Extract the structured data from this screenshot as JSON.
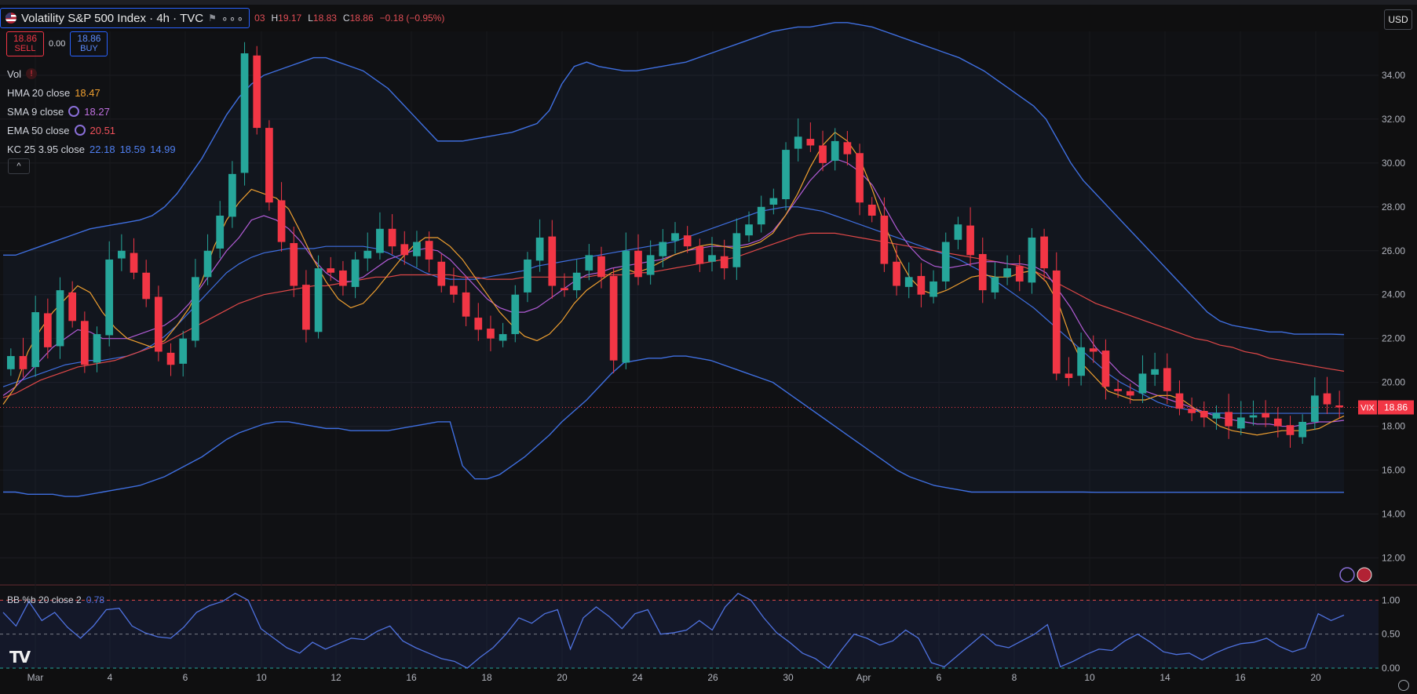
{
  "header": {
    "symbol_title": "Volatility S&P 500 Index · 4h · TVC",
    "more": "∘∘∘",
    "o_value": "03",
    "h_label": "H",
    "h_value": "19.17",
    "l_label": "L",
    "l_value": "18.83",
    "c_label": "C",
    "c_value": "18.86",
    "change": "−0.18 (−0.95%)"
  },
  "trade": {
    "sell_price": "18.86",
    "sell_label": "SELL",
    "spread": "0.00",
    "buy_price": "18.86",
    "buy_label": "BUY"
  },
  "legend": {
    "vol": "Vol",
    "hma_name": "HMA 20 close",
    "hma_value": "18.47",
    "sma_name": "SMA 9 close",
    "sma_value": "18.27",
    "ema_name": "EMA 50 close",
    "ema_value": "20.51",
    "kc_name": "KC 25 3.95 close",
    "kc_upper": "22.18",
    "kc_mid": "18.59",
    "kc_lower": "14.99",
    "collapse": "^"
  },
  "currency": "USD",
  "price_axis": [
    "34.00",
    "32.00",
    "30.00",
    "28.00",
    "26.00",
    "24.00",
    "22.00",
    "20.00",
    "18.00",
    "16.00",
    "14.00",
    "12.00"
  ],
  "last_price_tag": {
    "symbol": "VIX",
    "value": "18.86"
  },
  "osc_axis": [
    "1.00",
    "0.50",
    "0.00"
  ],
  "osc_legend": {
    "name": "BB %b 20 close 2",
    "value": "0.78"
  },
  "time_axis": [
    "Mar",
    "4",
    "6",
    "10",
    "12",
    "16",
    "18",
    "20",
    "24",
    "26",
    "30",
    "Apr",
    "6",
    "8",
    "10",
    "14",
    "16",
    "20"
  ],
  "colors": {
    "up": "#26a69a",
    "down": "#f23645",
    "hma": "#f0a030",
    "sma": "#b25cd6",
    "ema": "#e04848",
    "kc": "#3f6fe0",
    "osc": "#4f72e0"
  },
  "chart_data": [
    {
      "type": "line",
      "title": "Volatility S&P 500 Index · 4h · TVC",
      "ylim": [
        10.8,
        36.0
      ],
      "y_ticks": [
        34,
        32,
        30,
        28,
        26,
        24,
        22,
        20,
        18,
        16,
        14,
        12
      ],
      "x_ticks": [
        "Mar",
        "4",
        "6",
        "10",
        "12",
        "16",
        "18",
        "20",
        "24",
        "26",
        "30",
        "Apr",
        "6",
        "8",
        "10",
        "14",
        "16",
        "20"
      ],
      "last_value": 18.86,
      "candles_close": [
        21.2,
        20.6,
        23.2,
        21.6,
        24.2,
        22.8,
        20.8,
        22.2,
        25.6,
        26.0,
        25.0,
        23.8,
        21.4,
        20.8,
        22.0,
        24.8,
        26.0,
        27.6,
        29.5,
        35.0,
        31.6,
        28.2,
        26.4,
        24.4,
        22.4,
        25.2,
        25.0,
        24.4,
        25.6,
        26.0,
        27.0,
        26.2,
        25.8,
        26.4,
        25.6,
        24.4,
        24.0,
        23.0,
        22.4,
        22.0,
        22.2,
        24.0,
        25.6,
        26.6,
        24.4,
        24.2,
        25.0,
        25.8,
        24.8,
        21.0,
        26.0,
        24.8,
        25.8,
        26.4,
        26.8,
        26.2,
        25.4,
        25.8,
        25.2,
        26.8,
        27.2,
        28.0,
        28.4,
        30.6,
        31.2,
        30.8,
        30.0,
        31.0,
        30.4,
        28.2,
        27.6,
        25.4,
        24.4,
        24.8,
        24.0,
        24.6,
        26.4,
        27.2,
        25.8,
        24.2,
        24.8,
        25.2,
        24.6,
        26.6,
        25.2,
        20.4,
        20.2,
        21.6,
        21.4,
        19.8,
        19.6,
        19.4,
        20.4,
        20.6,
        19.6,
        18.8,
        18.6,
        18.4,
        18.6,
        18.0,
        18.4,
        18.5,
        18.4,
        18.0,
        17.6,
        18.2,
        19.4,
        19.0,
        18.86
      ],
      "hma": [
        19.0,
        19.8,
        21.4,
        22.4,
        23.2,
        23.8,
        24.4,
        24.1,
        23.2,
        22.5,
        22.0,
        21.8,
        21.6,
        21.9,
        22.6,
        23.4,
        24.6,
        26.2,
        27.4,
        28.2,
        28.8,
        28.6,
        28.4,
        27.9,
        26.8,
        25.6,
        24.6,
        23.8,
        23.4,
        23.6,
        24.2,
        24.9,
        25.6,
        26.2,
        26.6,
        26.6,
        26.2,
        25.6,
        24.8,
        24.0,
        23.2,
        22.6,
        22.1,
        21.9,
        22.2,
        22.8,
        23.6,
        24.2,
        24.6,
        25.0,
        25.2,
        25.0,
        25.2,
        25.5,
        25.8,
        26.0,
        26.2,
        26.3,
        26.2,
        26.1,
        26.2,
        26.4,
        26.8,
        27.6,
        28.6,
        29.8,
        30.8,
        31.4,
        31.0,
        30.2,
        28.8,
        27.2,
        25.8,
        24.8,
        24.2,
        24.0,
        24.2,
        24.5,
        24.8,
        24.9,
        24.8,
        24.8,
        25.0,
        25.1,
        24.6,
        23.6,
        22.0,
        20.8,
        20.2,
        19.6,
        19.4,
        19.2,
        19.2,
        19.4,
        19.4,
        19.2,
        18.8,
        18.4,
        18.0,
        17.8,
        17.7,
        17.6,
        17.7,
        17.8,
        17.8,
        17.8,
        17.9,
        18.2,
        18.47
      ],
      "sma": [
        19.4,
        19.8,
        20.4,
        21.0,
        21.6,
        22.0,
        22.4,
        22.3,
        22.0,
        22.0,
        22.0,
        22.2,
        22.4,
        22.6,
        23.0,
        23.6,
        24.4,
        25.2,
        26.0,
        26.6,
        27.4,
        27.6,
        27.4,
        27.0,
        26.4,
        25.6,
        25.0,
        24.6,
        24.6,
        24.8,
        25.2,
        25.6,
        25.8,
        26.0,
        26.1,
        26.0,
        25.6,
        25.0,
        24.4,
        23.8,
        23.4,
        23.2,
        23.2,
        23.4,
        23.8,
        24.2,
        24.6,
        24.9,
        25.0,
        25.2,
        25.3,
        25.4,
        25.5,
        25.6,
        25.8,
        26.0,
        26.1,
        26.2,
        26.2,
        26.2,
        26.3,
        26.5,
        26.9,
        27.6,
        28.4,
        29.2,
        29.8,
        30.2,
        30.0,
        29.6,
        29.0,
        28.0,
        27.0,
        26.2,
        25.6,
        25.3,
        25.2,
        25.3,
        25.4,
        25.5,
        25.5,
        25.4,
        25.4,
        25.3,
        25.0,
        24.2,
        23.4,
        22.4,
        21.6,
        21.0,
        20.4,
        20.0,
        19.6,
        19.4,
        19.2,
        19.0,
        18.8,
        18.6,
        18.4,
        18.3,
        18.2,
        18.1,
        18.1,
        18.0,
        18.0,
        18.1,
        18.2,
        18.2,
        18.27
      ],
      "ema": [
        19.3,
        19.5,
        19.8,
        20.1,
        20.3,
        20.5,
        20.7,
        20.8,
        20.9,
        21.0,
        21.2,
        21.4,
        21.6,
        21.8,
        22.1,
        22.4,
        22.7,
        23.0,
        23.3,
        23.6,
        23.8,
        24.0,
        24.1,
        24.2,
        24.3,
        24.4,
        24.4,
        24.5,
        24.6,
        24.7,
        24.8,
        24.8,
        24.9,
        24.9,
        24.9,
        24.9,
        24.9,
        24.8,
        24.8,
        24.7,
        24.7,
        24.7,
        24.8,
        24.8,
        24.8,
        24.8,
        24.8,
        24.8,
        24.9,
        24.9,
        24.9,
        25.0,
        25.0,
        25.1,
        25.2,
        25.3,
        25.4,
        25.5,
        25.6,
        25.7,
        25.9,
        26.1,
        26.3,
        26.5,
        26.7,
        26.8,
        26.8,
        26.8,
        26.7,
        26.6,
        26.5,
        26.4,
        26.3,
        26.2,
        26.1,
        26.0,
        25.9,
        25.8,
        25.7,
        25.6,
        25.5,
        25.4,
        25.3,
        25.1,
        24.8,
        24.5,
        24.2,
        23.9,
        23.6,
        23.4,
        23.2,
        23.0,
        22.8,
        22.6,
        22.4,
        22.2,
        22.0,
        21.9,
        21.7,
        21.6,
        21.4,
        21.3,
        21.1,
        21.0,
        20.9,
        20.8,
        20.7,
        20.6,
        20.51
      ],
      "kc_upper": [
        25.8,
        25.8,
        26.0,
        26.2,
        26.4,
        26.6,
        26.8,
        27.0,
        27.1,
        27.2,
        27.3,
        27.4,
        27.6,
        28.0,
        28.6,
        29.4,
        30.2,
        31.2,
        32.2,
        33.0,
        33.6,
        34.0,
        34.2,
        34.4,
        34.6,
        34.8,
        34.8,
        34.6,
        34.4,
        34.2,
        33.8,
        33.4,
        32.8,
        32.2,
        31.6,
        31.0,
        31.0,
        31.0,
        31.1,
        31.2,
        31.3,
        31.4,
        31.6,
        31.8,
        32.4,
        33.6,
        34.4,
        34.6,
        34.4,
        34.3,
        34.2,
        34.2,
        34.3,
        34.4,
        34.5,
        34.6,
        34.8,
        35.0,
        35.2,
        35.4,
        35.6,
        35.8,
        36.0,
        36.1,
        36.2,
        36.2,
        36.3,
        36.4,
        36.4,
        36.3,
        36.2,
        36.0,
        35.8,
        35.6,
        35.4,
        35.2,
        35.0,
        34.8,
        34.5,
        34.2,
        33.8,
        33.4,
        33.0,
        32.6,
        32.0,
        31.0,
        30.0,
        29.2,
        28.6,
        28.0,
        27.4,
        26.8,
        26.2,
        25.6,
        25.0,
        24.4,
        23.8,
        23.2,
        22.8,
        22.6,
        22.5,
        22.4,
        22.3,
        22.3,
        22.2,
        22.2,
        22.2,
        22.2,
        22.18
      ],
      "kc_mid": [
        19.8,
        20.0,
        20.2,
        20.4,
        20.6,
        20.8,
        20.9,
        21.0,
        21.0,
        21.1,
        21.2,
        21.4,
        21.7,
        22.1,
        22.6,
        23.2,
        23.8,
        24.4,
        25.0,
        25.4,
        25.7,
        25.9,
        26.0,
        26.1,
        26.1,
        26.1,
        26.2,
        26.2,
        26.2,
        26.2,
        26.1,
        25.9,
        25.6,
        25.3,
        25.0,
        24.8,
        24.7,
        24.7,
        24.7,
        24.8,
        24.9,
        25.0,
        25.1,
        25.3,
        25.4,
        25.5,
        25.6,
        25.7,
        25.8,
        25.9,
        26.0,
        26.1,
        26.2,
        26.3,
        26.4,
        26.6,
        26.8,
        27.0,
        27.2,
        27.4,
        27.6,
        27.8,
        27.9,
        28.0,
        28.0,
        27.9,
        27.8,
        27.6,
        27.4,
        27.2,
        27.0,
        26.8,
        26.6,
        26.4,
        26.2,
        26.0,
        25.8,
        25.6,
        25.3,
        25.0,
        24.6,
        24.2,
        23.8,
        23.4,
        22.9,
        22.4,
        21.9,
        21.4,
        20.9,
        20.4,
        20.0,
        19.7,
        19.4,
        19.1,
        18.9,
        18.8,
        18.7,
        18.6,
        18.6,
        18.59,
        18.59,
        18.59,
        18.59,
        18.59,
        18.59,
        18.59,
        18.59,
        18.59,
        18.59
      ],
      "kc_lower": [
        15.0,
        15.0,
        14.9,
        14.9,
        14.9,
        14.8,
        14.8,
        14.9,
        15.0,
        15.1,
        15.2,
        15.3,
        15.5,
        15.7,
        16.0,
        16.3,
        16.6,
        17.0,
        17.4,
        17.7,
        17.9,
        18.1,
        18.2,
        18.2,
        18.1,
        18.0,
        17.9,
        17.9,
        17.8,
        17.8,
        17.8,
        17.8,
        17.9,
        18.0,
        18.1,
        18.2,
        18.2,
        16.2,
        15.6,
        15.6,
        15.8,
        16.2,
        16.6,
        17.1,
        17.6,
        18.2,
        18.7,
        19.2,
        19.8,
        20.4,
        20.9,
        21.0,
        21.1,
        21.1,
        21.2,
        21.2,
        21.1,
        21.0,
        20.8,
        20.6,
        20.4,
        20.2,
        20.0,
        19.6,
        19.2,
        18.8,
        18.4,
        18.0,
        17.6,
        17.2,
        16.8,
        16.4,
        16.0,
        15.7,
        15.5,
        15.3,
        15.2,
        15.1,
        15.0,
        15.0,
        15.0,
        15.0,
        15.0,
        15.0,
        15.0,
        15.0,
        15.0,
        15.0,
        14.99,
        14.99,
        14.99,
        14.99,
        14.99,
        14.99,
        14.99,
        14.99,
        14.99,
        14.99,
        14.99,
        14.99,
        14.99,
        14.99,
        14.99,
        14.99,
        14.99,
        14.99,
        14.99,
        14.99,
        14.99
      ]
    },
    {
      "type": "line",
      "title": "BB %b 20 close 2",
      "ylim": [
        0,
        1.2
      ],
      "y_ticks": [
        1.0,
        0.5,
        0.0
      ],
      "series": [
        {
          "name": "BB %b 20 close 2",
          "values": [
            0.82,
            0.62,
            0.98,
            0.7,
            0.82,
            0.6,
            0.44,
            0.62,
            0.86,
            0.88,
            0.62,
            0.52,
            0.46,
            0.44,
            0.6,
            0.82,
            0.92,
            0.98,
            1.1,
            1.0,
            0.58,
            0.44,
            0.3,
            0.22,
            0.38,
            0.28,
            0.36,
            0.44,
            0.42,
            0.54,
            0.62,
            0.4,
            0.3,
            0.22,
            0.14,
            0.1,
            0.0,
            0.16,
            0.3,
            0.5,
            0.74,
            0.66,
            0.8,
            0.86,
            0.28,
            0.74,
            0.9,
            0.76,
            0.58,
            0.8,
            0.86,
            0.5,
            0.52,
            0.56,
            0.7,
            0.56,
            0.9,
            1.1,
            1.0,
            0.74,
            0.52,
            0.38,
            0.22,
            0.14,
            0.0,
            0.26,
            0.5,
            0.44,
            0.34,
            0.4,
            0.56,
            0.44,
            0.08,
            0.02,
            0.18,
            0.34,
            0.5,
            0.34,
            0.3,
            0.4,
            0.5,
            0.64,
            0.02,
            0.1,
            0.2,
            0.28,
            0.26,
            0.4,
            0.5,
            0.38,
            0.24,
            0.2,
            0.22,
            0.12,
            0.22,
            0.3,
            0.36,
            0.38,
            0.44,
            0.32,
            0.24,
            0.3,
            0.8,
            0.7,
            0.78
          ]
        }
      ]
    }
  ]
}
